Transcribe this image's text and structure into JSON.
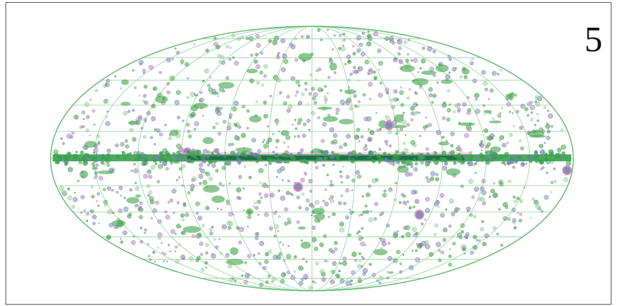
{
  "panel_label": "5"
}
